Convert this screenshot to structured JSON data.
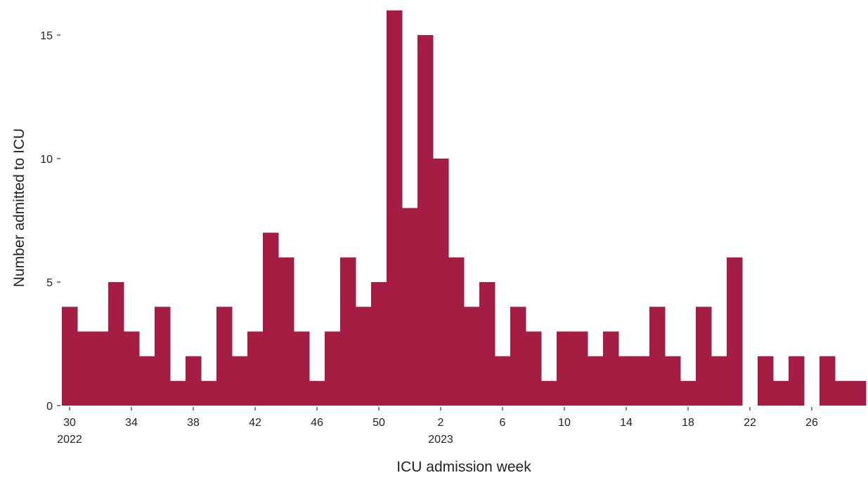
{
  "chart_data": {
    "type": "bar",
    "x_label": "ICU admission week",
    "y_label": "Number admitted to ICU",
    "categories": [
      "30",
      null,
      null,
      null,
      "34",
      null,
      null,
      null,
      "38",
      null,
      null,
      null,
      "42",
      null,
      null,
      null,
      "46",
      null,
      null,
      null,
      "50",
      null,
      null,
      null,
      "2",
      null,
      null,
      null,
      "6",
      null,
      null,
      null,
      "10",
      null,
      null,
      null,
      "14",
      null,
      null,
      null,
      "18",
      null,
      null,
      null,
      "22",
      null,
      null,
      null,
      "26",
      null,
      null,
      null
    ],
    "year_labels": [
      "2022",
      null,
      null,
      null,
      null,
      null,
      null,
      null,
      null,
      null,
      null,
      null,
      null,
      null,
      null,
      null,
      null,
      null,
      null,
      null,
      null,
      null,
      null,
      null,
      "2023",
      null,
      null,
      null,
      null,
      null,
      null,
      null,
      null,
      null,
      null,
      null,
      null,
      null,
      null,
      null,
      null,
      null,
      null,
      null,
      null,
      null,
      null,
      null,
      null,
      null,
      null,
      null
    ],
    "values": [
      4,
      3,
      3,
      5,
      3,
      2,
      4,
      1,
      2,
      1,
      4,
      2,
      3,
      7,
      6,
      3,
      1,
      3,
      6,
      4,
      5,
      16,
      8,
      15,
      10,
      6,
      4,
      5,
      2,
      4,
      3,
      1,
      3,
      3,
      2,
      3,
      2,
      2,
      4,
      2,
      1,
      4,
      2,
      6,
      0,
      2,
      1,
      2,
      0,
      2,
      1,
      1
    ],
    "color": "#a51d42",
    "ylim": [
      0,
      16
    ],
    "yticks": [
      0,
      5,
      10,
      15
    ],
    "grid": false
  }
}
